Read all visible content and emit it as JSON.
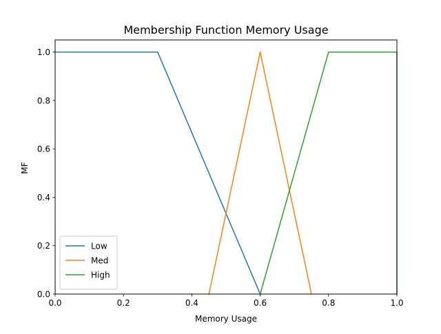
{
  "chart_data": {
    "type": "line",
    "title": "Membership Function Memory Usage",
    "xlabel": "Memory Usage",
    "ylabel": "MF",
    "xlim": [
      0,
      1
    ],
    "ylim": [
      0,
      1.05
    ],
    "x_ticks": [
      "0.0",
      "0.2",
      "0.4",
      "0.6",
      "0.8",
      "1.0"
    ],
    "y_ticks": [
      "0.0",
      "0.2",
      "0.4",
      "0.6",
      "0.8",
      "1.0"
    ],
    "grid": false,
    "legend_position": "lower-left",
    "series": [
      {
        "name": "Low",
        "color": "#1f77b4",
        "x": [
          0.0,
          0.3,
          0.6
        ],
        "y": [
          1.0,
          1.0,
          0.0
        ]
      },
      {
        "name": "Med",
        "color": "#ff7f0e",
        "x": [
          0.45,
          0.6,
          0.75
        ],
        "y": [
          0.0,
          1.0,
          0.0
        ]
      },
      {
        "name": "High",
        "color": "#2ca02c",
        "x": [
          0.6,
          0.8,
          1.0,
          1.0
        ],
        "y": [
          0.0,
          1.0,
          1.0,
          0.0
        ]
      }
    ]
  }
}
